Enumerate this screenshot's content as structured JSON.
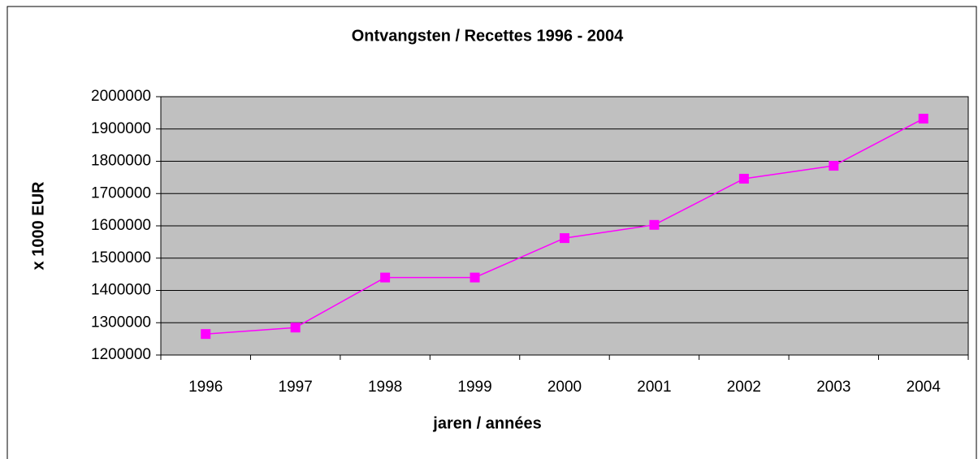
{
  "chart_data": {
    "type": "line",
    "title": "Ontvangsten / Recettes 1996 - 2004",
    "x_label": "jaren / années",
    "y_label": "x 1000 EUR",
    "categories": [
      "1996",
      "1997",
      "1998",
      "1999",
      "2000",
      "2001",
      "2002",
      "2003",
      "2004"
    ],
    "series": [
      {
        "name": "Ontvangsten",
        "color": "#ff00ff",
        "values": [
          1265000,
          1285000,
          1440000,
          1440000,
          1562000,
          1603000,
          1746000,
          1786000,
          1932000
        ]
      }
    ],
    "ylim": [
      1200000,
      2000000
    ],
    "yticks": [
      1200000,
      1300000,
      1400000,
      1500000,
      1600000,
      1700000,
      1800000,
      1900000,
      2000000
    ],
    "grid": true,
    "plot_background": "#c0c0c0"
  }
}
